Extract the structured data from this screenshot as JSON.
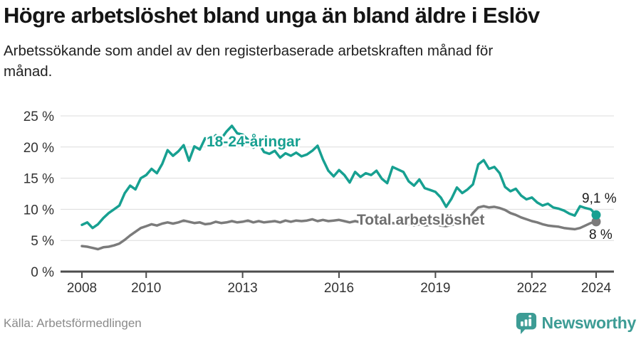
{
  "chart_data": {
    "type": "line",
    "title": "Högre arbetslöshet bland unga än bland äldre i Eslöv",
    "subtitle": "Arbetssökande som andel av den registerbaserade arbetskraften månad för månad.",
    "unit": "%",
    "grid": true,
    "legend": "inline-labels",
    "x_axis": {
      "start_year": 2008,
      "step_years": 0.1666667,
      "tick_years": [
        2008,
        2010,
        2013,
        2016,
        2019,
        2022,
        2024
      ],
      "tick_labels": [
        "2008",
        "2010",
        "2013",
        "2016",
        "2019",
        "2022",
        "2024"
      ]
    },
    "y_axis": {
      "ticks": [
        0,
        5,
        10,
        15,
        20,
        25
      ],
      "tick_labels": [
        "0 %",
        "5 %",
        "10 %",
        "15 %",
        "20 %",
        "25 %"
      ],
      "range": [
        0,
        25
      ]
    },
    "series": [
      {
        "name": "18-24-åringar",
        "color": "#17A091",
        "end_value": 9.1,
        "end_label": "9,1 %",
        "values": [
          7.5,
          7.9,
          7.0,
          7.6,
          8.6,
          9.4,
          10.0,
          10.6,
          12.6,
          13.8,
          13.2,
          15.0,
          15.5,
          16.5,
          15.8,
          17.3,
          19.5,
          18.6,
          19.3,
          20.3,
          17.8,
          20.1,
          19.6,
          21.4,
          21.0,
          21.9,
          21.3,
          22.5,
          23.4,
          22.2,
          22.0,
          21.2,
          19.9,
          20.6,
          19.2,
          18.9,
          19.4,
          18.3,
          19.0,
          18.6,
          19.1,
          18.5,
          18.8,
          19.4,
          20.2,
          18.0,
          16.2,
          15.3,
          16.3,
          15.5,
          14.3,
          16.0,
          15.2,
          15.8,
          15.5,
          16.2,
          14.9,
          14.2,
          16.8,
          16.4,
          16.0,
          14.5,
          13.8,
          14.8,
          13.4,
          13.1,
          12.8,
          11.9,
          10.4,
          11.7,
          13.5,
          12.6,
          13.2,
          14.0,
          17.2,
          17.9,
          16.5,
          16.8,
          15.8,
          13.6,
          12.9,
          13.3,
          12.2,
          11.6,
          11.9,
          11.1,
          10.6,
          10.9,
          10.3,
          10.1,
          9.8,
          9.3,
          9.0,
          10.5,
          10.2,
          10.0,
          9.1
        ]
      },
      {
        "name": "Total arbetslöshet",
        "color": "#7B7B7B",
        "end_value": 8.0,
        "end_label": "8 %",
        "values": [
          4.1,
          4.0,
          3.8,
          3.6,
          3.9,
          4.0,
          4.2,
          4.5,
          5.1,
          5.8,
          6.4,
          7.0,
          7.3,
          7.6,
          7.4,
          7.7,
          7.9,
          7.7,
          7.9,
          8.2,
          8.0,
          7.8,
          7.9,
          7.6,
          7.7,
          8.0,
          7.8,
          7.9,
          8.1,
          7.9,
          8.0,
          8.2,
          7.9,
          8.1,
          7.9,
          8.0,
          8.1,
          7.9,
          8.2,
          8.0,
          8.2,
          8.1,
          8.2,
          8.4,
          8.1,
          8.3,
          8.1,
          8.2,
          8.3,
          8.1,
          7.9,
          8.1,
          7.9,
          8.0,
          7.9,
          8.1,
          7.8,
          7.6,
          7.8,
          7.7,
          7.8,
          7.6,
          7.4,
          7.6,
          7.4,
          7.5,
          7.6,
          7.4,
          7.3,
          7.5,
          7.7,
          7.8,
          8.2,
          9.4,
          10.3,
          10.5,
          10.3,
          10.4,
          10.2,
          9.9,
          9.4,
          9.1,
          8.7,
          8.4,
          8.1,
          7.9,
          7.6,
          7.4,
          7.3,
          7.2,
          7.0,
          6.9,
          6.8,
          7.0,
          7.4,
          7.8,
          8.0
        ]
      }
    ]
  },
  "colors": {
    "young_line": "#17A091",
    "total_line": "#7B7B7B",
    "gridline": "#DCDCDC",
    "axis": "#4D4D4D",
    "tick_text": "#333333",
    "title_text": "#151515",
    "source_text": "#8A8A8A",
    "brand_teal": "#3D9C95"
  },
  "footer": {
    "source": "Källa: Arbetsförmedlingen",
    "brand": "Newsworthy"
  }
}
